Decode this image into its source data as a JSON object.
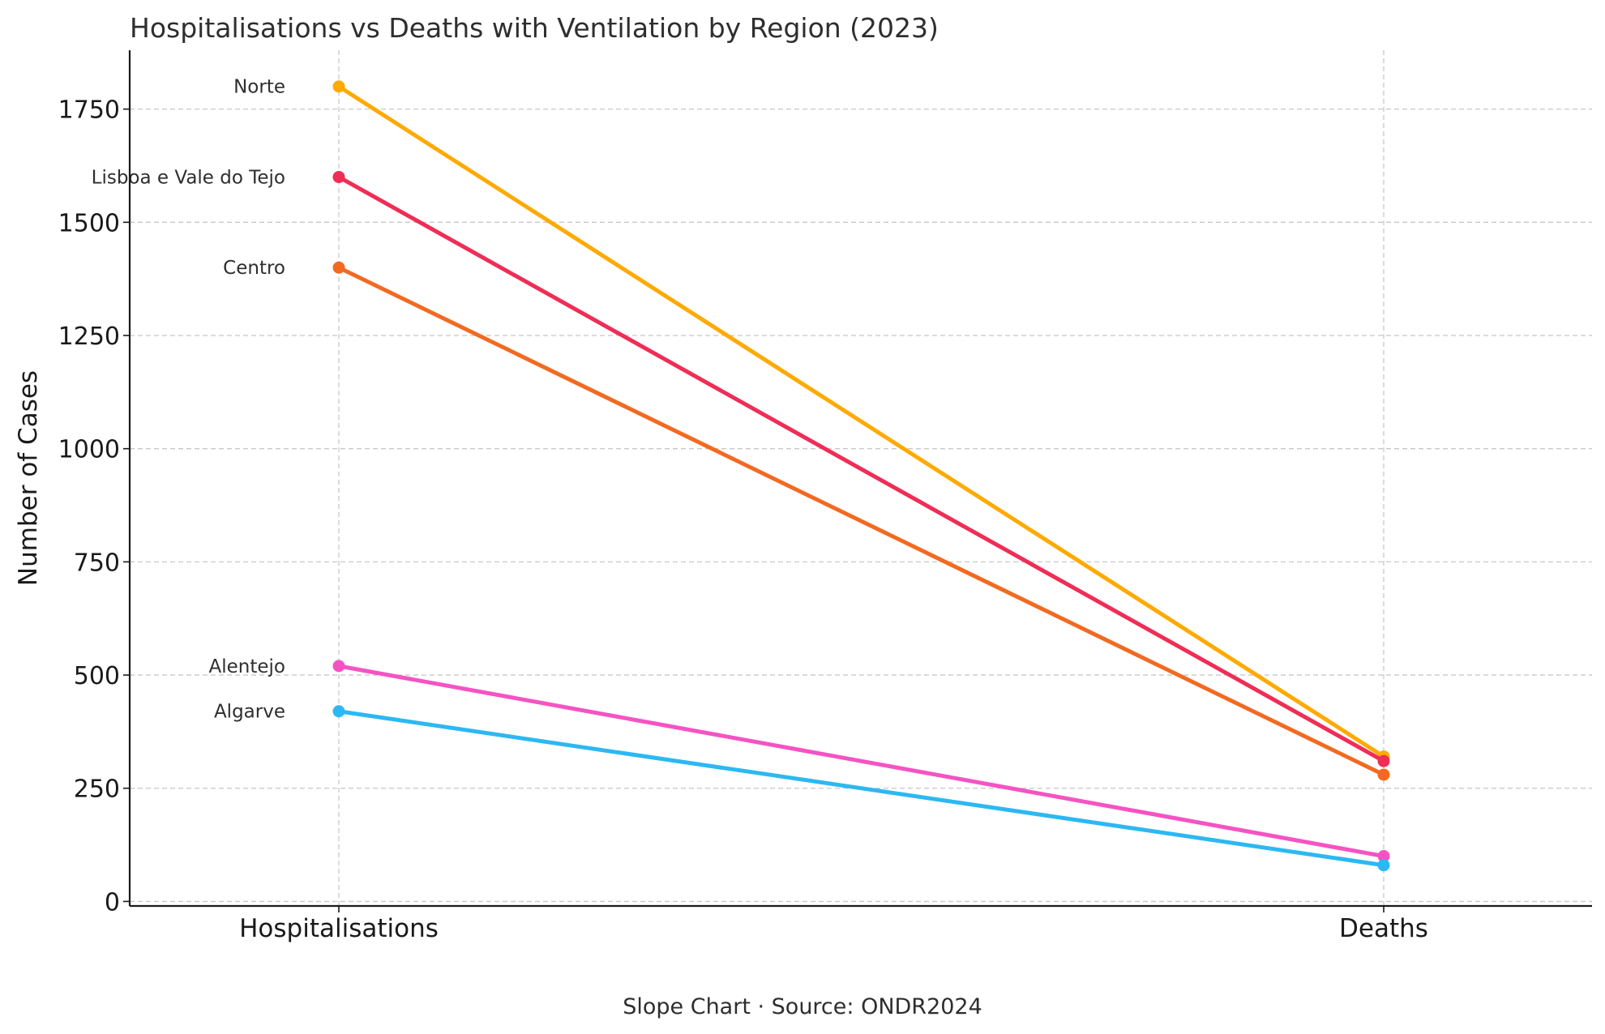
{
  "chart_data": {
    "type": "line",
    "subtype": "slope",
    "title": "Hospitalisations vs Deaths with Ventilation by Region (2023)",
    "caption": "Slope Chart · Source: ONDR2024",
    "xlabel": "",
    "ylabel": "Number of Cases",
    "categories": [
      "Hospitalisations",
      "Deaths"
    ],
    "ylim": [
      -10,
      1880
    ],
    "yticks": [
      0,
      250,
      500,
      750,
      1000,
      1250,
      1500,
      1750
    ],
    "grid": true,
    "legend": "none",
    "series": [
      {
        "name": "Norte",
        "values": [
          1800,
          320
        ],
        "color": "#FFAA00"
      },
      {
        "name": "Lisboa e Vale do Tejo",
        "values": [
          1600,
          310
        ],
        "color": "#EF2D56"
      },
      {
        "name": "Centro",
        "values": [
          1400,
          280
        ],
        "color": "#F26A21"
      },
      {
        "name": "Alentejo",
        "values": [
          520,
          100
        ],
        "color": "#F553C3"
      },
      {
        "name": "Algarve",
        "values": [
          420,
          80
        ],
        "color": "#2CB8F2"
      }
    ]
  }
}
